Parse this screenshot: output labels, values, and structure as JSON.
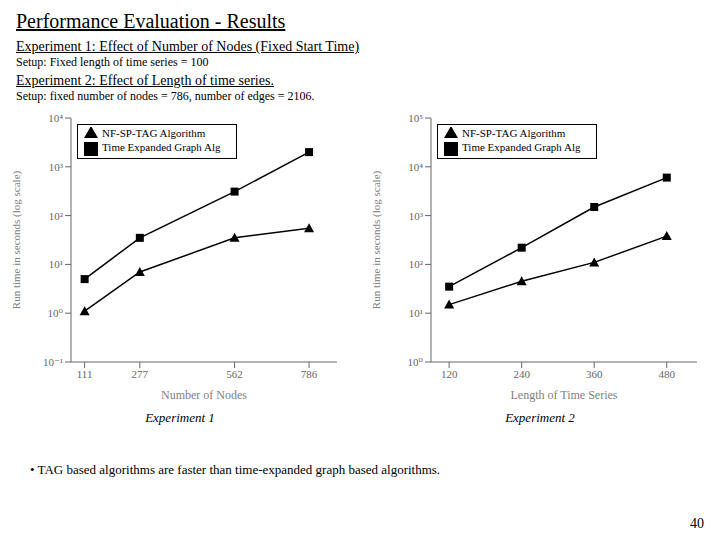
{
  "title": "Performance Evaluation - Results",
  "annotations": [
    "• TAG based algorithms are faster than time-expanded graph based algorithms.",
    "40"
  ],
  "chart_data": [
    {
      "type": "line",
      "title": "Experiment 1",
      "subtitle": "Experiment 1: Effect of Number of Nodes (Fixed Start Time)",
      "annotations": [
        "Setup: Fixed length of time series = 100"
      ],
      "x": [
        111,
        277,
        562,
        786
      ],
      "series": [
        {
          "name": "Time Expanded Graph Alg",
          "color": "#000000",
          "marker": "square",
          "values": [
            5,
            35,
            310,
            2000
          ]
        },
        {
          "name": "NF-SP-TAG Algorithm",
          "color": "#000000",
          "marker": "triangle",
          "values": [
            1.1,
            7,
            35,
            55
          ]
        }
      ],
      "xlabel": "Number of Nodes",
      "ylabel": "Run time in seconds (log scale)",
      "xlim": [
        70,
        870
      ],
      "xticks": [
        111,
        277,
        562,
        786
      ],
      "ylim": [
        0.1,
        10000
      ],
      "yticks": [
        {
          "value": 0.1,
          "label": "10⁻¹"
        },
        {
          "value": 1,
          "label": "10⁰"
        },
        {
          "value": 10,
          "label": "10¹"
        },
        {
          "value": 100,
          "label": "10²"
        },
        {
          "value": 1000,
          "label": "10³"
        },
        {
          "value": 10000,
          "label": "10⁴"
        }
      ],
      "log": "y",
      "grid": false,
      "legend": "upper left"
    },
    {
      "type": "line",
      "title": "Experiment 2",
      "subtitle": "Experiment 2: Effect of Length of time series.",
      "annotations": [
        "Setup: fixed number of nodes = 786, number of edges = 2106."
      ],
      "x": [
        120,
        240,
        360,
        480
      ],
      "series": [
        {
          "name": "Time Expanded Graph Alg",
          "color": "#000000",
          "marker": "square",
          "values": [
            35,
            220,
            1500,
            6000
          ]
        },
        {
          "name": "NF-SP-TAG Algorithm",
          "color": "#000000",
          "marker": "triangle",
          "values": [
            15,
            45,
            110,
            380
          ]
        }
      ],
      "xlabel": "Length of Time Series",
      "ylabel": "Run time in seconds (log scale)",
      "xlim": [
        90,
        530
      ],
      "xticks": [
        120,
        240,
        360,
        480
      ],
      "ylim": [
        1,
        100000
      ],
      "yticks": [
        {
          "value": 1,
          "label": "10⁰"
        },
        {
          "value": 10,
          "label": "10¹"
        },
        {
          "value": 100,
          "label": "10²"
        },
        {
          "value": 1000,
          "label": "10³"
        },
        {
          "value": 10000,
          "label": "10⁴"
        },
        {
          "value": 100000,
          "label": "10⁵"
        }
      ],
      "log": "y",
      "grid": false,
      "legend": "upper left"
    }
  ]
}
